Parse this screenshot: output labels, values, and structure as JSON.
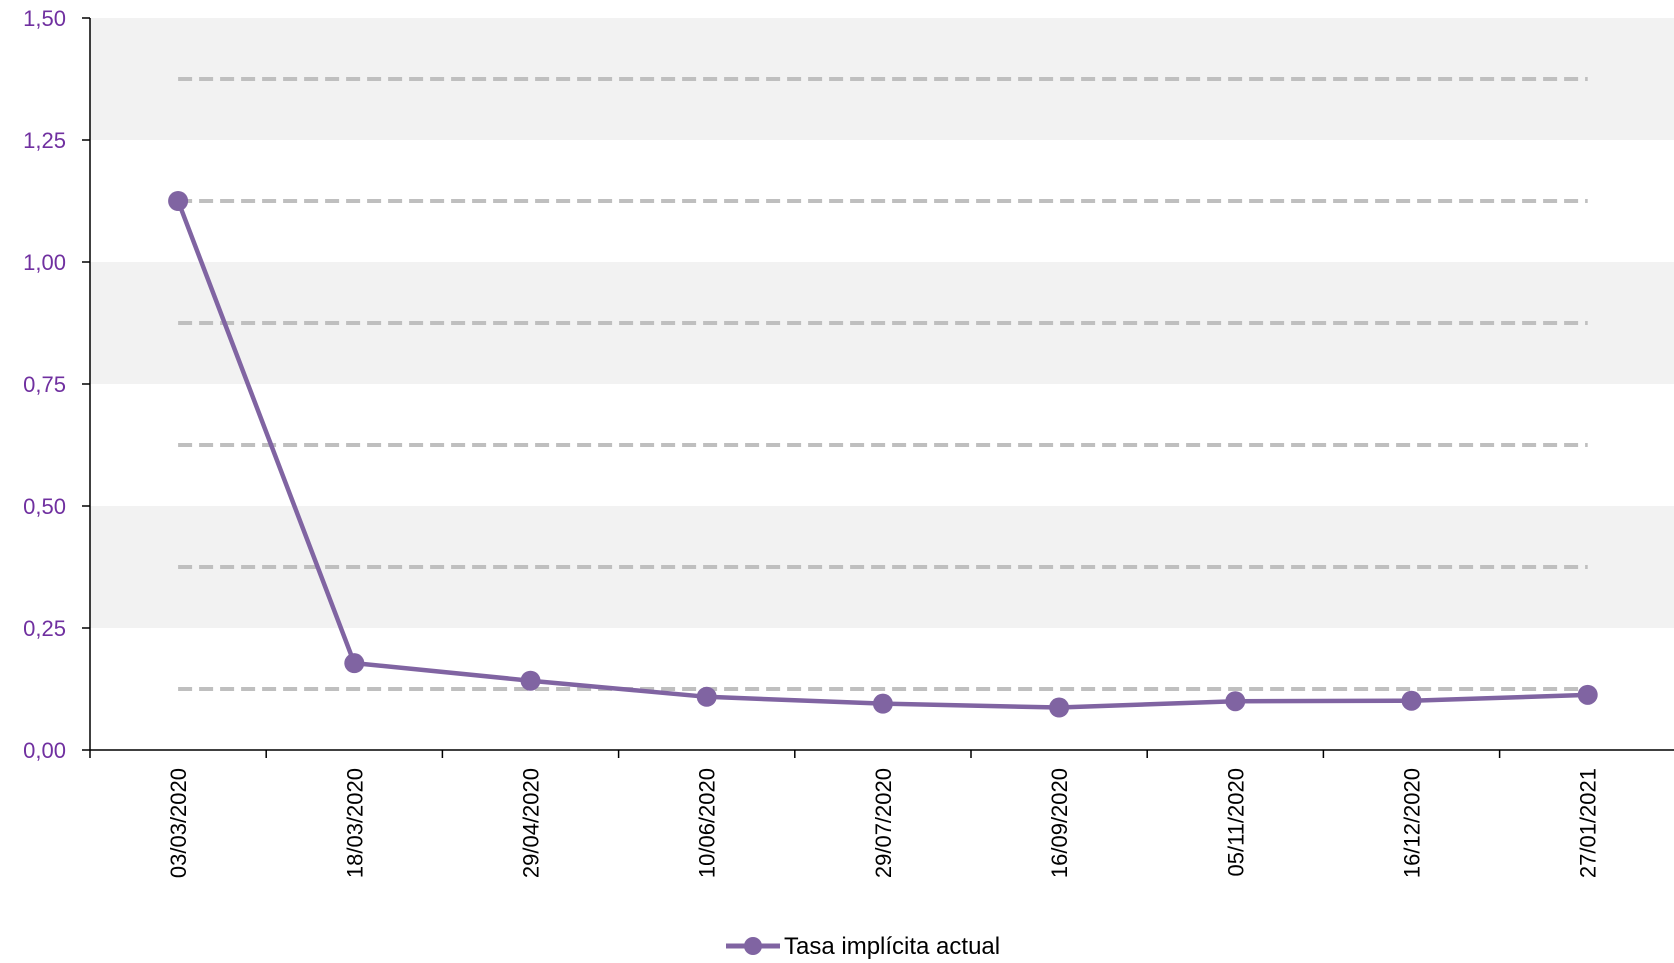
{
  "chart_data": {
    "type": "line",
    "categories": [
      "03/03/2020",
      "18/03/2020",
      "29/04/2020",
      "10/06/2020",
      "29/07/2020",
      "16/09/2020",
      "05/11/2020",
      "16/12/2020",
      "27/01/2021"
    ],
    "series": [
      {
        "name": "Tasa implícita actual",
        "values": [
          1.125,
          0.178,
          0.142,
          0.109,
          0.095,
          0.087,
          0.1,
          0.101,
          0.113
        ],
        "color": "#8064a2"
      }
    ],
    "title": "",
    "xlabel": "",
    "ylabel": "",
    "ylim": [
      0,
      1.5
    ],
    "y_ticks": [
      "0,00",
      "0,25",
      "0,50",
      "0,75",
      "1,00",
      "1,25",
      "1,50"
    ],
    "reference_levels": [
      0.125,
      0.375,
      0.625,
      0.875,
      1.125,
      1.375
    ],
    "grid": false,
    "background_bands": true,
    "band_color": "#f2f2f2",
    "reference_line_color": "#bfbfbf",
    "y_tick_color": "#7030a0",
    "legend_position": "bottom-center"
  }
}
